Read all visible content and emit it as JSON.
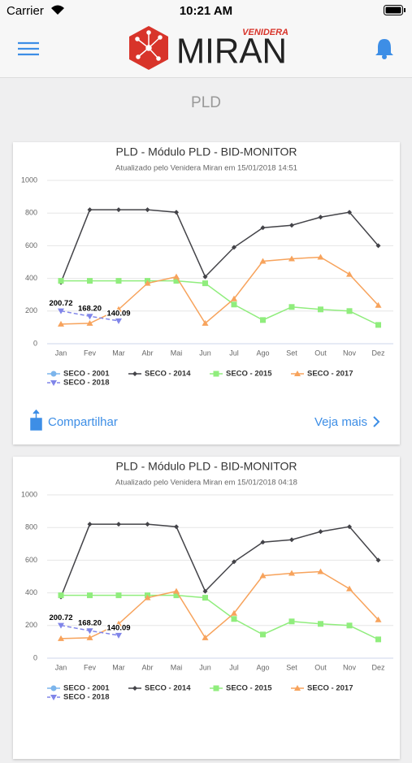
{
  "status_bar": {
    "carrier": "Carrier",
    "time": "10:21 AM"
  },
  "header": {
    "logo_top": "VENIDERA",
    "logo": "MIRAN"
  },
  "page_title": "PLD",
  "cards": [
    {
      "share": "Compartilhar",
      "more": "Veja mais"
    }
  ],
  "chart_data": [
    {
      "type": "line",
      "title": "PLD - Módulo PLD - BID-MONITOR",
      "subtitle": "Atualizado pelo Venidera Miran em 15/01/2018 14:51",
      "categories": [
        "Jan",
        "Fev",
        "Mar",
        "Abr",
        "Mai",
        "Jun",
        "Jul",
        "Ago",
        "Set",
        "Out",
        "Nov",
        "Dez"
      ],
      "ylim": [
        0,
        1000
      ],
      "yticks": [
        0,
        200,
        400,
        600,
        800,
        1000
      ],
      "grid": true,
      "series": [
        {
          "name": "SECO - 2001",
          "color": "#7cb5ec",
          "marker": "circle",
          "values": [
            null,
            null,
            null,
            null,
            null,
            null,
            null,
            null,
            null,
            null,
            null,
            null
          ]
        },
        {
          "name": "SECO - 2014",
          "color": "#434348",
          "marker": "diamond",
          "values": [
            375,
            820,
            820,
            820,
            805,
            410,
            590,
            710,
            725,
            775,
            805,
            600
          ]
        },
        {
          "name": "SECO - 2015",
          "color": "#90ed7d",
          "marker": "square",
          "values": [
            385,
            385,
            385,
            385,
            385,
            370,
            240,
            145,
            225,
            210,
            200,
            115
          ]
        },
        {
          "name": "SECO - 2017",
          "color": "#f7a35c",
          "marker": "triangle",
          "values": [
            120,
            125,
            210,
            370,
            410,
            125,
            275,
            505,
            520,
            530,
            425,
            235
          ]
        },
        {
          "name": "SECO - 2018",
          "color": "#8085e9",
          "marker": "triangle-down",
          "dash": true,
          "values": [
            200.72,
            168.2,
            140.09,
            null,
            null,
            null,
            null,
            null,
            null,
            null,
            null,
            null
          ],
          "value_labels": [
            "200.72",
            "168.20",
            "140.09",
            null,
            null,
            null,
            null,
            null,
            null,
            null,
            null,
            null
          ]
        }
      ]
    },
    {
      "type": "line",
      "title": "PLD - Módulo PLD - BID-MONITOR",
      "subtitle": "Atualizado pelo Venidera Miran em 15/01/2018 04:18",
      "categories": [
        "Jan",
        "Fev",
        "Mar",
        "Abr",
        "Mai",
        "Jun",
        "Jul",
        "Ago",
        "Set",
        "Out",
        "Nov",
        "Dez"
      ],
      "ylim": [
        0,
        1000
      ],
      "yticks": [
        0,
        200,
        400,
        600,
        800,
        1000
      ],
      "grid": true,
      "series": [
        {
          "name": "SECO - 2001",
          "color": "#7cb5ec",
          "marker": "circle",
          "values": [
            null,
            null,
            null,
            null,
            null,
            null,
            null,
            null,
            null,
            null,
            null,
            null
          ]
        },
        {
          "name": "SECO - 2014",
          "color": "#434348",
          "marker": "diamond",
          "values": [
            375,
            820,
            820,
            820,
            805,
            410,
            590,
            710,
            725,
            775,
            805,
            600
          ]
        },
        {
          "name": "SECO - 2015",
          "color": "#90ed7d",
          "marker": "square",
          "values": [
            385,
            385,
            385,
            385,
            385,
            370,
            240,
            145,
            225,
            210,
            200,
            115
          ]
        },
        {
          "name": "SECO - 2017",
          "color": "#f7a35c",
          "marker": "triangle",
          "values": [
            120,
            125,
            210,
            370,
            410,
            125,
            275,
            505,
            520,
            530,
            425,
            235
          ]
        },
        {
          "name": "SECO - 2018",
          "color": "#8085e9",
          "marker": "triangle-down",
          "dash": true,
          "values": [
            200.72,
            168.2,
            140.09,
            null,
            null,
            null,
            null,
            null,
            null,
            null,
            null,
            null
          ],
          "value_labels": [
            "200.72",
            "168.20",
            "140.09",
            null,
            null,
            null,
            null,
            null,
            null,
            null,
            null,
            null
          ]
        }
      ]
    }
  ]
}
